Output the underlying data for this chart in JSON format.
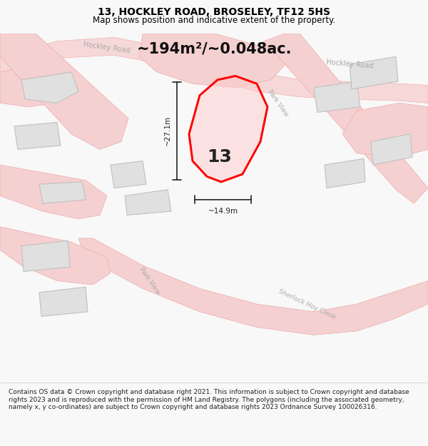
{
  "title": "13, HOCKLEY ROAD, BROSELEY, TF12 5HS",
  "subtitle": "Map shows position and indicative extent of the property.",
  "area_text": "~194m²/~0.048ac.",
  "dim_height": "~27.1m",
  "dim_width": "~14.9m",
  "label_number": "13",
  "footer": "Contains OS data © Crown copyright and database right 2021. This information is subject to Crown copyright and database rights 2023 and is reproduced with the permission of HM Land Registry. The polygons (including the associated geometry, namely x, y co-ordinates) are subject to Crown copyright and database rights 2023 Ordnance Survey 100026316.",
  "bg_color": "#f8f8f8",
  "map_bg": "#ffffff",
  "road_color": "#f0c0c0",
  "road_outline": "#e08080",
  "building_fill": "#e0e0e0",
  "building_outline": "#c0c0c0",
  "highlight_fill": "#ff000020",
  "highlight_outline": "#ff0000",
  "road_label_color": "#aaaaaa",
  "dim_color": "#222222",
  "title_fontsize": 10,
  "subtitle_fontsize": 8.5,
  "area_fontsize": 16,
  "footer_fontsize": 6.5
}
